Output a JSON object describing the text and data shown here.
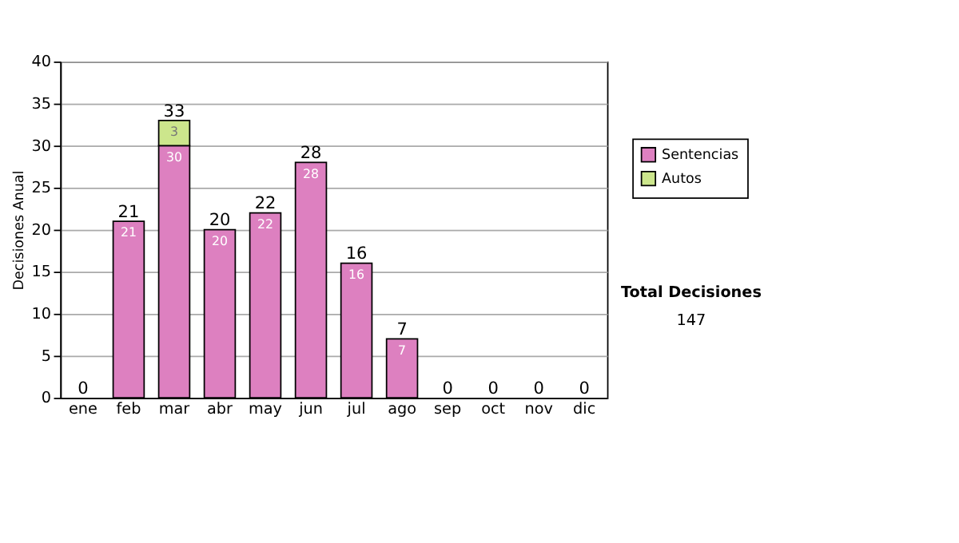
{
  "chart_data": {
    "type": "bar",
    "stacked": true,
    "ylabel": "Decisiones Anual",
    "categories": [
      "ene",
      "feb",
      "mar",
      "abr",
      "may",
      "jun",
      "jul",
      "ago",
      "sep",
      "oct",
      "nov",
      "dic"
    ],
    "series": [
      {
        "name": "Sentencias",
        "color": "#dd80c0",
        "values": [
          0,
          21,
          30,
          20,
          22,
          28,
          16,
          7,
          0,
          0,
          0,
          0
        ],
        "value_labels": [
          null,
          "21",
          "30",
          "20",
          "22",
          "28",
          "16",
          "7",
          null,
          null,
          null,
          null
        ]
      },
      {
        "name": "Autos",
        "color": "#cce68c",
        "values": [
          0,
          0,
          3,
          0,
          0,
          0,
          0,
          0,
          0,
          0,
          0,
          0
        ],
        "value_labels": [
          null,
          null,
          "3",
          null,
          null,
          null,
          null,
          null,
          null,
          null,
          null,
          null
        ]
      }
    ],
    "totals": [
      "0",
      "21",
      "33",
      "20",
      "22",
      "28",
      "16",
      "7",
      "0",
      "0",
      "0",
      "0"
    ],
    "ylim": [
      0,
      40
    ],
    "yticks": [
      0,
      5,
      10,
      15,
      20,
      25,
      30,
      35,
      40
    ],
    "grid": "y",
    "legend": "right",
    "annotations": [
      "Total Decisiones",
      "147"
    ]
  }
}
